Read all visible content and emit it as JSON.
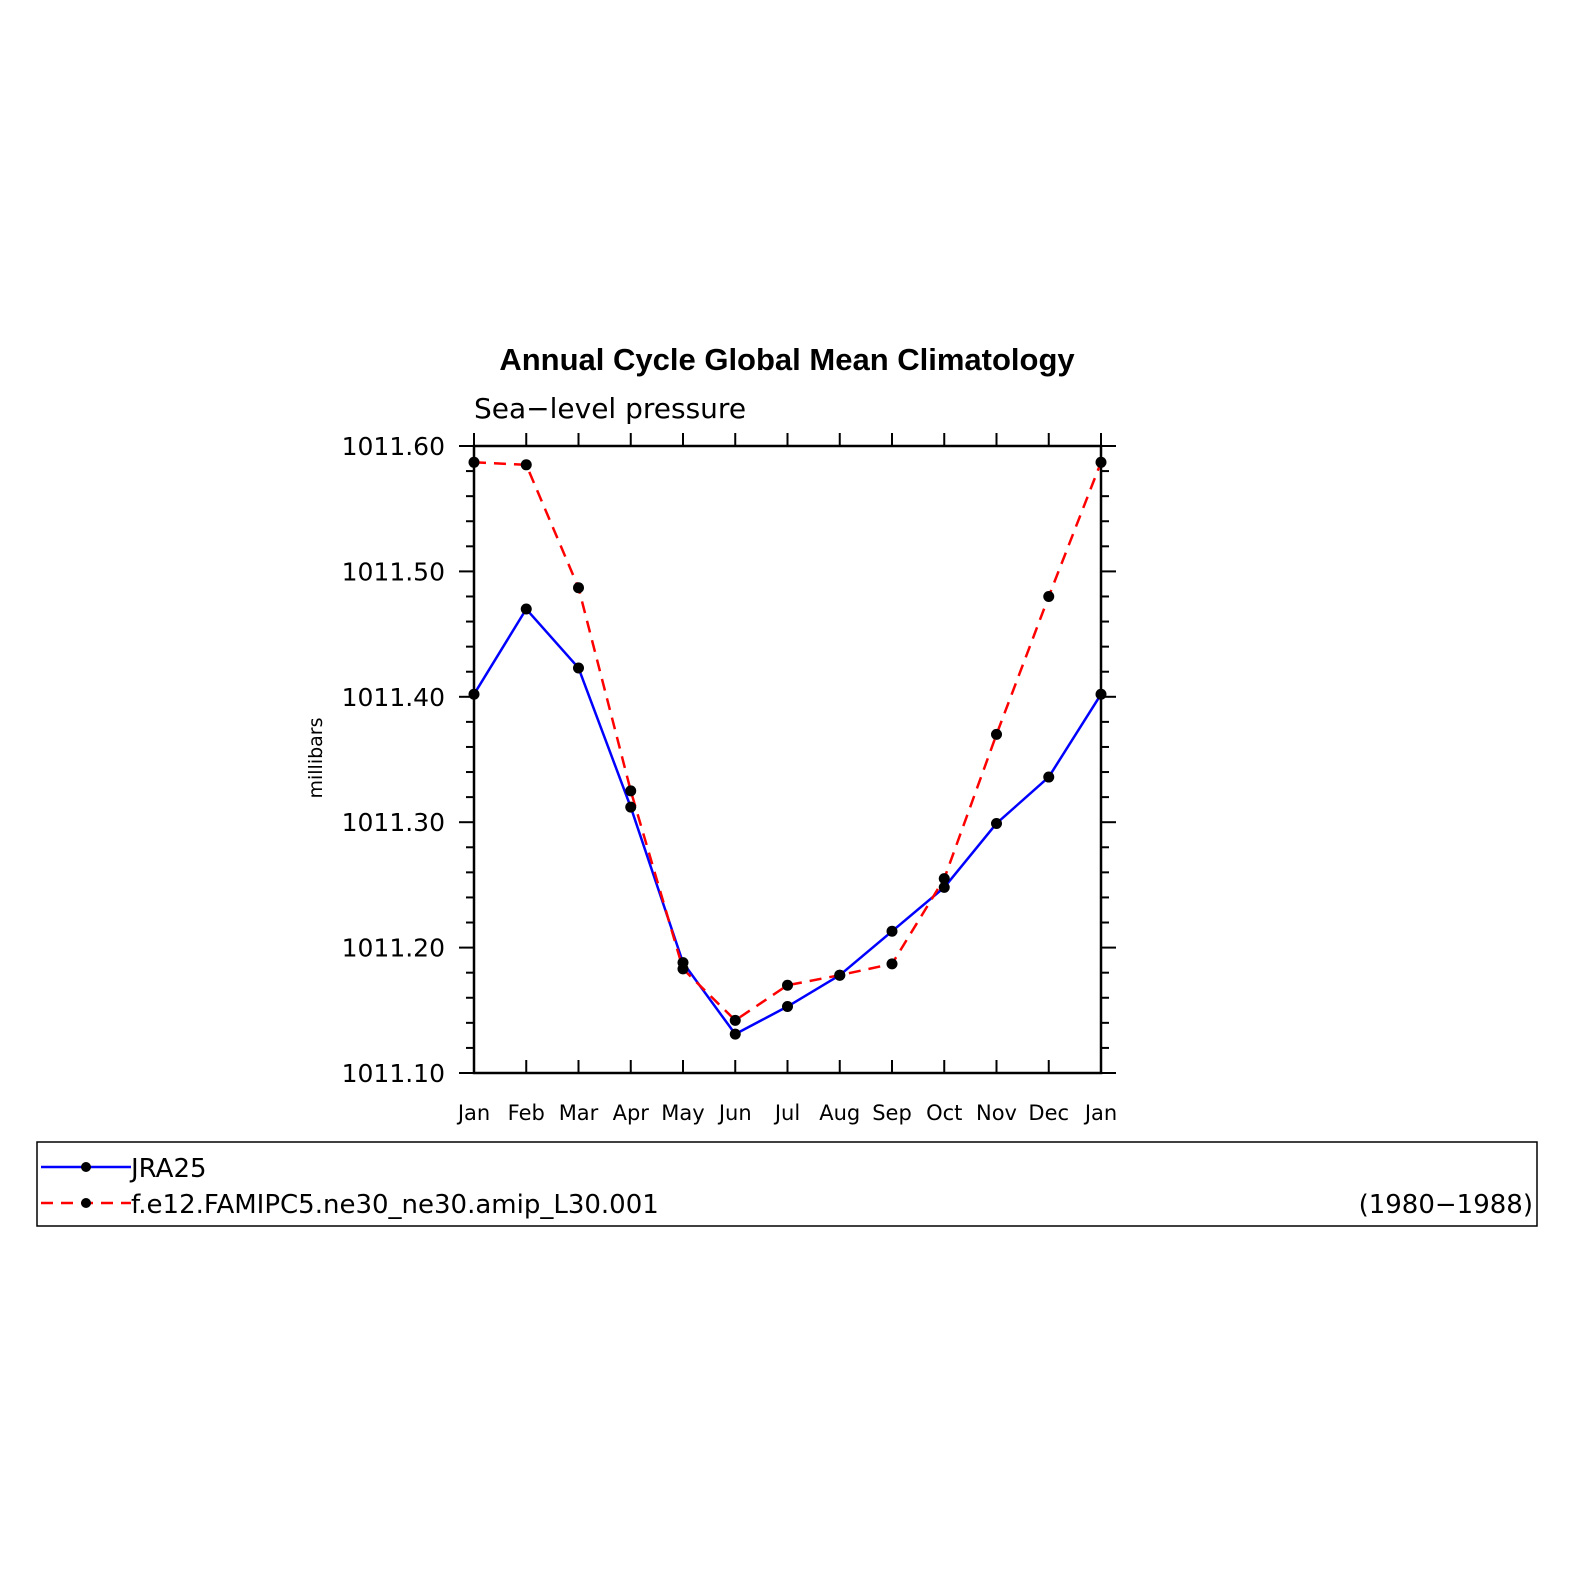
{
  "chart_data": {
    "type": "line",
    "title": "Annual Cycle Global Mean Climatology",
    "subtitle": "Sea−level pressure",
    "ylabel": "millibars",
    "xlabel": "",
    "categories": [
      "Jan",
      "Feb",
      "Mar",
      "Apr",
      "May",
      "Jun",
      "Jul",
      "Aug",
      "Sep",
      "Oct",
      "Nov",
      "Dec",
      "Jan"
    ],
    "ylim": [
      1011.1,
      1011.6
    ],
    "yticks": [
      "1011.10",
      "1011.20",
      "1011.30",
      "1011.40",
      "1011.50",
      "1011.60"
    ],
    "series": [
      {
        "name": "JRA25",
        "color": "#0000ff",
        "style": "solid",
        "values": [
          1011.402,
          1011.47,
          1011.423,
          1011.312,
          1011.188,
          1011.131,
          1011.153,
          1011.178,
          1011.213,
          1011.248,
          1011.299,
          1011.336,
          1011.402
        ]
      },
      {
        "name": "f.e12.FAMIPC5.ne30_ne30.amip_L30.001",
        "color": "#ff0000",
        "style": "dashed",
        "values": [
          1011.587,
          1011.585,
          1011.487,
          1011.325,
          1011.183,
          1011.142,
          1011.17,
          1011.178,
          1011.187,
          1011.255,
          1011.37,
          1011.48,
          1011.587
        ]
      }
    ],
    "legend_placement": "bottom",
    "legend_note": "(1980−1988)",
    "grid": false
  }
}
